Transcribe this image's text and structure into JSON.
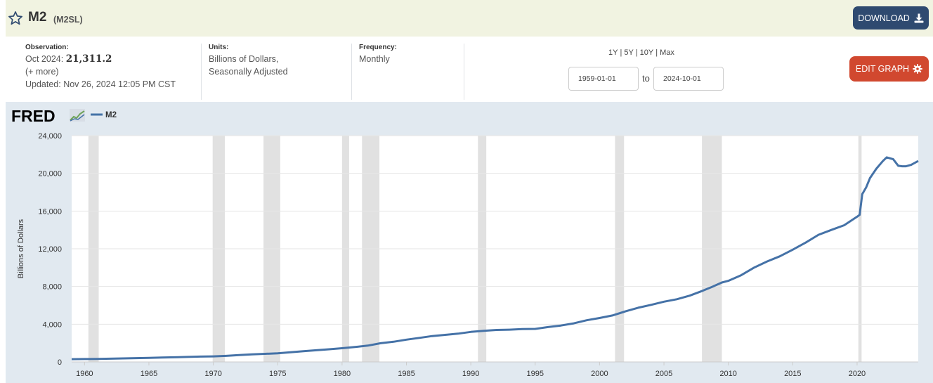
{
  "series": {
    "name": "M2",
    "id": "(M2SL)"
  },
  "toolbar": {
    "download_label": "DOWNLOAD",
    "edit_label": "EDIT GRAPH"
  },
  "meta": {
    "observation_head": "Observation:",
    "observation_date": "Oct 2024:",
    "observation_value": "21,311.2",
    "more_link": "(+ more)",
    "updated": "Updated: Nov 26, 2024 12:05 PM CST",
    "units_head": "Units:",
    "units_line1": "Billions of Dollars,",
    "units_line2": "Seasonally Adjusted",
    "frequency_head": "Frequency:",
    "frequency": "Monthly"
  },
  "range": {
    "links": [
      "1Y",
      "5Y",
      "10Y",
      "Max"
    ],
    "start": "1959-01-01",
    "end": "2024-10-01",
    "to_label": "to"
  },
  "colors": {
    "line": "#4572a7",
    "recession": "#e1e1e1",
    "download_bg": "#2f4a70",
    "edit_bg": "#d1482f"
  },
  "chart_data": {
    "type": "line",
    "logo_text": "FRED",
    "legend": [
      "M2"
    ],
    "ylabel": "Billions of Dollars",
    "xlabel": "",
    "xlim": [
      1959.0,
      2024.75
    ],
    "ylim": [
      0,
      24000
    ],
    "yticks": [
      0,
      4000,
      8000,
      12000,
      16000,
      20000,
      24000
    ],
    "ytick_labels": [
      "0",
      "4,000",
      "8,000",
      "12,000",
      "16,000",
      "20,000",
      "24,000"
    ],
    "xticks": [
      1960,
      1965,
      1970,
      1975,
      1980,
      1985,
      1990,
      1995,
      2000,
      2005,
      2010,
      2015,
      2020
    ],
    "grid": true,
    "recessions": [
      [
        1960.3,
        1961.1
      ],
      [
        1969.95,
        1970.9
      ],
      [
        1973.9,
        1975.2
      ],
      [
        1980.0,
        1980.55
      ],
      [
        1981.55,
        1982.9
      ],
      [
        1990.55,
        1991.2
      ],
      [
        2001.2,
        2001.9
      ],
      [
        2007.95,
        2009.5
      ],
      [
        2020.1,
        2020.35
      ]
    ],
    "series": [
      {
        "name": "M2",
        "x": [
          1959.0,
          1960.0,
          1961.0,
          1962.0,
          1963.0,
          1964.0,
          1965.0,
          1966.0,
          1967.0,
          1968.0,
          1969.0,
          1970.0,
          1971.0,
          1972.0,
          1973.0,
          1974.0,
          1975.0,
          1976.0,
          1977.0,
          1978.0,
          1979.0,
          1980.0,
          1981.0,
          1982.0,
          1983.0,
          1984.0,
          1985.0,
          1986.0,
          1987.0,
          1988.0,
          1989.0,
          1990.0,
          1991.0,
          1992.0,
          1993.0,
          1994.0,
          1995.0,
          1996.0,
          1997.0,
          1998.0,
          1999.0,
          2000.0,
          2001.0,
          2002.0,
          2003.0,
          2004.0,
          2005.0,
          2006.0,
          2007.0,
          2008.0,
          2008.8,
          2009.5,
          2010.0,
          2011.0,
          2012.0,
          2013.0,
          2014.0,
          2015.0,
          2016.0,
          2017.0,
          2018.0,
          2019.0,
          2020.0,
          2020.2,
          2020.4,
          2020.7,
          2021.0,
          2021.5,
          2022.0,
          2022.3,
          2022.8,
          2023.2,
          2023.5,
          2023.8,
          2024.2,
          2024.75
        ],
        "y": [
          290,
          305,
          315,
          340,
          370,
          400,
          430,
          460,
          490,
          530,
          570,
          590,
          640,
          720,
          800,
          860,
          920,
          1020,
          1130,
          1240,
          1340,
          1450,
          1580,
          1730,
          1980,
          2140,
          2360,
          2550,
          2740,
          2870,
          3000,
          3180,
          3300,
          3390,
          3420,
          3480,
          3500,
          3700,
          3860,
          4090,
          4420,
          4660,
          4930,
          5360,
          5750,
          6050,
          6390,
          6650,
          7030,
          7540,
          8000,
          8420,
          8600,
          9200,
          10000,
          10650,
          11200,
          11900,
          12650,
          13480,
          14000,
          14500,
          15400,
          15600,
          17800,
          18500,
          19500,
          20500,
          21300,
          21700,
          21500,
          20800,
          20750,
          20750,
          20900,
          21311
        ]
      }
    ]
  }
}
